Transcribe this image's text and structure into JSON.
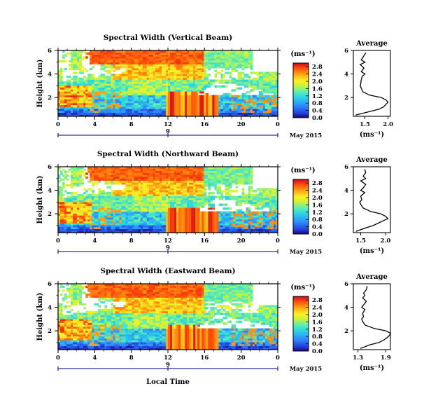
{
  "chart_data": [
    {
      "type": "heatmap",
      "title": "Spectral Width (Vertical Beam)",
      "ylabel": "Height (km)",
      "xlim": [
        0,
        24
      ],
      "ylim": [
        0.4,
        6
      ],
      "x_ticks": [
        "0",
        "4",
        "8",
        "12",
        "16",
        "20",
        "0"
      ],
      "y_ticks": [
        "2",
        "4",
        "6"
      ],
      "date_ticks": [
        "9"
      ],
      "date_label": "May 2015",
      "colorbar": {
        "unit": "(ms⁻¹)",
        "ticks": [
          "0.0",
          "0.4",
          "0.8",
          "1.2",
          "1.6",
          "2.0",
          "2.4",
          "2.8"
        ],
        "range": [
          0,
          3.0
        ]
      },
      "average": {
        "title": "Average",
        "xlabel": "(ms⁻¹)",
        "x_ticks": [
          "1.5",
          "2.0"
        ],
        "xlim": [
          1.25,
          2.05
        ],
        "y_ticks": [
          "2",
          "4",
          "6"
        ],
        "ylim": [
          0.4,
          6
        ],
        "height": [
          0.5,
          0.8,
          1.0,
          1.2,
          1.4,
          1.6,
          1.8,
          2.0,
          2.2,
          2.5,
          2.8,
          3.0,
          3.2,
          3.5,
          3.8,
          4.0,
          4.2,
          4.5,
          4.8,
          5.0,
          5.2,
          5.5,
          5.8
        ],
        "value": [
          1.3,
          1.6,
          1.8,
          1.9,
          1.95,
          2.0,
          1.95,
          1.85,
          1.6,
          1.45,
          1.42,
          1.4,
          1.41,
          1.42,
          1.44,
          1.5,
          1.42,
          1.48,
          1.4,
          1.5,
          1.42,
          1.47,
          1.52
        ]
      }
    },
    {
      "type": "heatmap",
      "title": "Spectral Width (Northward Beam)",
      "ylabel": "Height (km)",
      "xlim": [
        0,
        24
      ],
      "ylim": [
        0.4,
        6
      ],
      "x_ticks": [
        "0",
        "4",
        "8",
        "12",
        "16",
        "20",
        "0"
      ],
      "y_ticks": [
        "2",
        "4",
        "6"
      ],
      "date_ticks": [
        "9"
      ],
      "date_label": "May 2015",
      "colorbar": {
        "unit": "(ms⁻¹)",
        "ticks": [
          "0.0",
          "0.4",
          "0.8",
          "1.2",
          "1.6",
          "2.0",
          "2.4",
          "2.8"
        ],
        "range": [
          0,
          3.0
        ]
      },
      "average": {
        "title": "Average",
        "xlabel": "(ms⁻¹)",
        "x_ticks": [
          "1.5",
          "2.0"
        ],
        "xlim": [
          1.35,
          2.1
        ],
        "y_ticks": [
          "2",
          "4",
          "6"
        ],
        "ylim": [
          0.4,
          6
        ],
        "height": [
          0.5,
          0.8,
          1.0,
          1.2,
          1.4,
          1.6,
          1.8,
          2.0,
          2.2,
          2.5,
          2.8,
          3.0,
          3.2,
          3.5,
          3.8,
          4.0,
          4.2,
          4.5,
          4.8,
          5.0,
          5.2,
          5.5,
          5.8
        ],
        "value": [
          1.4,
          1.6,
          1.75,
          1.85,
          1.95,
          2.05,
          2.0,
          1.9,
          1.7,
          1.55,
          1.5,
          1.48,
          1.52,
          1.5,
          1.58,
          1.5,
          1.55,
          1.6,
          1.5,
          1.6,
          1.55,
          1.6,
          1.58
        ]
      }
    },
    {
      "type": "heatmap",
      "title": "Spectral Width (Eastward Beam)",
      "ylabel": "Height (km)",
      "xlabel": "Local Time",
      "xlim": [
        0,
        24
      ],
      "ylim": [
        0.4,
        6
      ],
      "x_ticks": [
        "0",
        "4",
        "8",
        "12",
        "16",
        "20",
        "0"
      ],
      "y_ticks": [
        "2",
        "4",
        "6"
      ],
      "date_ticks": [
        "9"
      ],
      "date_label": "May 2015",
      "colorbar": {
        "unit": "(ms⁻¹)",
        "ticks": [
          "0.0",
          "0.4",
          "0.8",
          "1.2",
          "1.6",
          "2.0",
          "2.4",
          "2.8"
        ],
        "range": [
          0,
          3.0
        ]
      },
      "average": {
        "title": "Average",
        "xlabel": "(ms⁻¹)",
        "x_ticks": [
          "1.3",
          "1.9"
        ],
        "xlim": [
          1.2,
          2.0
        ],
        "y_ticks": [
          "2",
          "4",
          "6"
        ],
        "ylim": [
          0.4,
          6
        ],
        "height": [
          0.5,
          0.8,
          1.0,
          1.2,
          1.4,
          1.6,
          1.8,
          2.0,
          2.2,
          2.5,
          2.8,
          3.0,
          3.2,
          3.5,
          3.8,
          4.0,
          4.2,
          4.5,
          4.8,
          5.0,
          5.2,
          5.5,
          5.8
        ],
        "value": [
          1.35,
          1.55,
          1.75,
          1.85,
          1.92,
          1.98,
          2.0,
          1.9,
          1.65,
          1.45,
          1.4,
          1.38,
          1.42,
          1.4,
          1.45,
          1.38,
          1.42,
          1.48,
          1.4,
          1.45,
          1.42,
          1.48,
          1.5
        ]
      }
    }
  ]
}
